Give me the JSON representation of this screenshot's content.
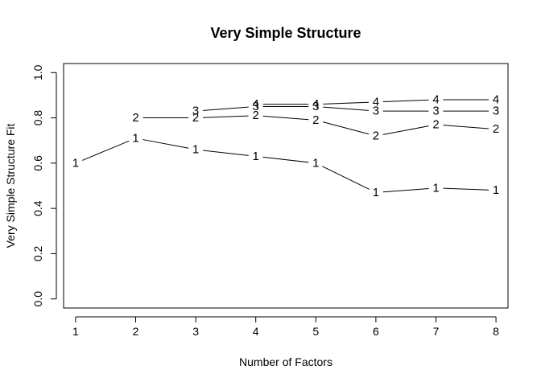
{
  "chart_data": {
    "type": "line",
    "title": "Very Simple Structure",
    "xlabel": "Number of Factors",
    "ylabel": "Very Simple Structure Fit",
    "x_ticks": [
      1,
      2,
      3,
      4,
      5,
      6,
      7,
      8
    ],
    "y_ticks": [
      0.0,
      0.2,
      0.4,
      0.6,
      0.8,
      1.0
    ],
    "y_tick_labels": [
      "0.0",
      "0.2",
      "0.4",
      "0.6",
      "0.8",
      "1.0"
    ],
    "xlim": [
      0.8,
      8.2
    ],
    "ylim": [
      -0.04,
      1.04
    ],
    "grid": false,
    "series": [
      {
        "marker": "1",
        "x": [
          1,
          2,
          3,
          4,
          5,
          6,
          7,
          8
        ],
        "values": [
          0.6,
          0.71,
          0.66,
          0.63,
          0.6,
          0.47,
          0.49,
          0.48
        ]
      },
      {
        "marker": "2",
        "x": [
          2,
          3,
          4,
          5,
          6,
          7,
          8
        ],
        "values": [
          0.8,
          0.8,
          0.81,
          0.79,
          0.72,
          0.77,
          0.75
        ]
      },
      {
        "marker": "3",
        "x": [
          3,
          4,
          5,
          6,
          7,
          8
        ],
        "values": [
          0.83,
          0.85,
          0.85,
          0.83,
          0.83,
          0.83
        ]
      },
      {
        "marker": "4",
        "x": [
          4,
          5,
          6,
          7,
          8
        ],
        "values": [
          0.86,
          0.86,
          0.87,
          0.88,
          0.88
        ]
      }
    ]
  }
}
